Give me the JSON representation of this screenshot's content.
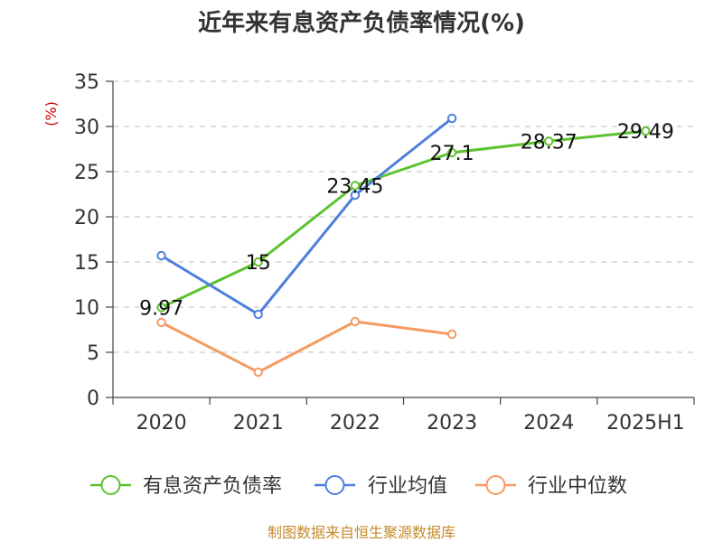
{
  "chart_data": {
    "type": "line",
    "title": "近年来有息资产负债率情况(%)",
    "ylabel": "(%)",
    "xlabel": "",
    "ylim": [
      0,
      35
    ],
    "yticks": [
      0,
      5,
      10,
      15,
      20,
      25,
      30,
      35
    ],
    "grid": true,
    "legend_position": "bottom",
    "categories": [
      "2020",
      "2021",
      "2022",
      "2023",
      "2024",
      "2025H1"
    ],
    "series": [
      {
        "name": "有息资产负债率",
        "color": "#5cc22e",
        "values": [
          9.97,
          15,
          23.45,
          27.1,
          28.37,
          29.49
        ],
        "labels": [
          "9.97",
          "15",
          "23.45",
          "27.1",
          "28.37",
          "29.49"
        ]
      },
      {
        "name": "行业均值",
        "color": "#4f7fdc",
        "values": [
          15.7,
          9.2,
          22.4,
          30.9,
          null,
          null
        ]
      },
      {
        "name": "行业中位数",
        "color": "#f59a62",
        "values": [
          8.3,
          2.8,
          8.4,
          7.0,
          null,
          null
        ]
      }
    ],
    "source": "制图数据来自恒生聚源数据库"
  }
}
